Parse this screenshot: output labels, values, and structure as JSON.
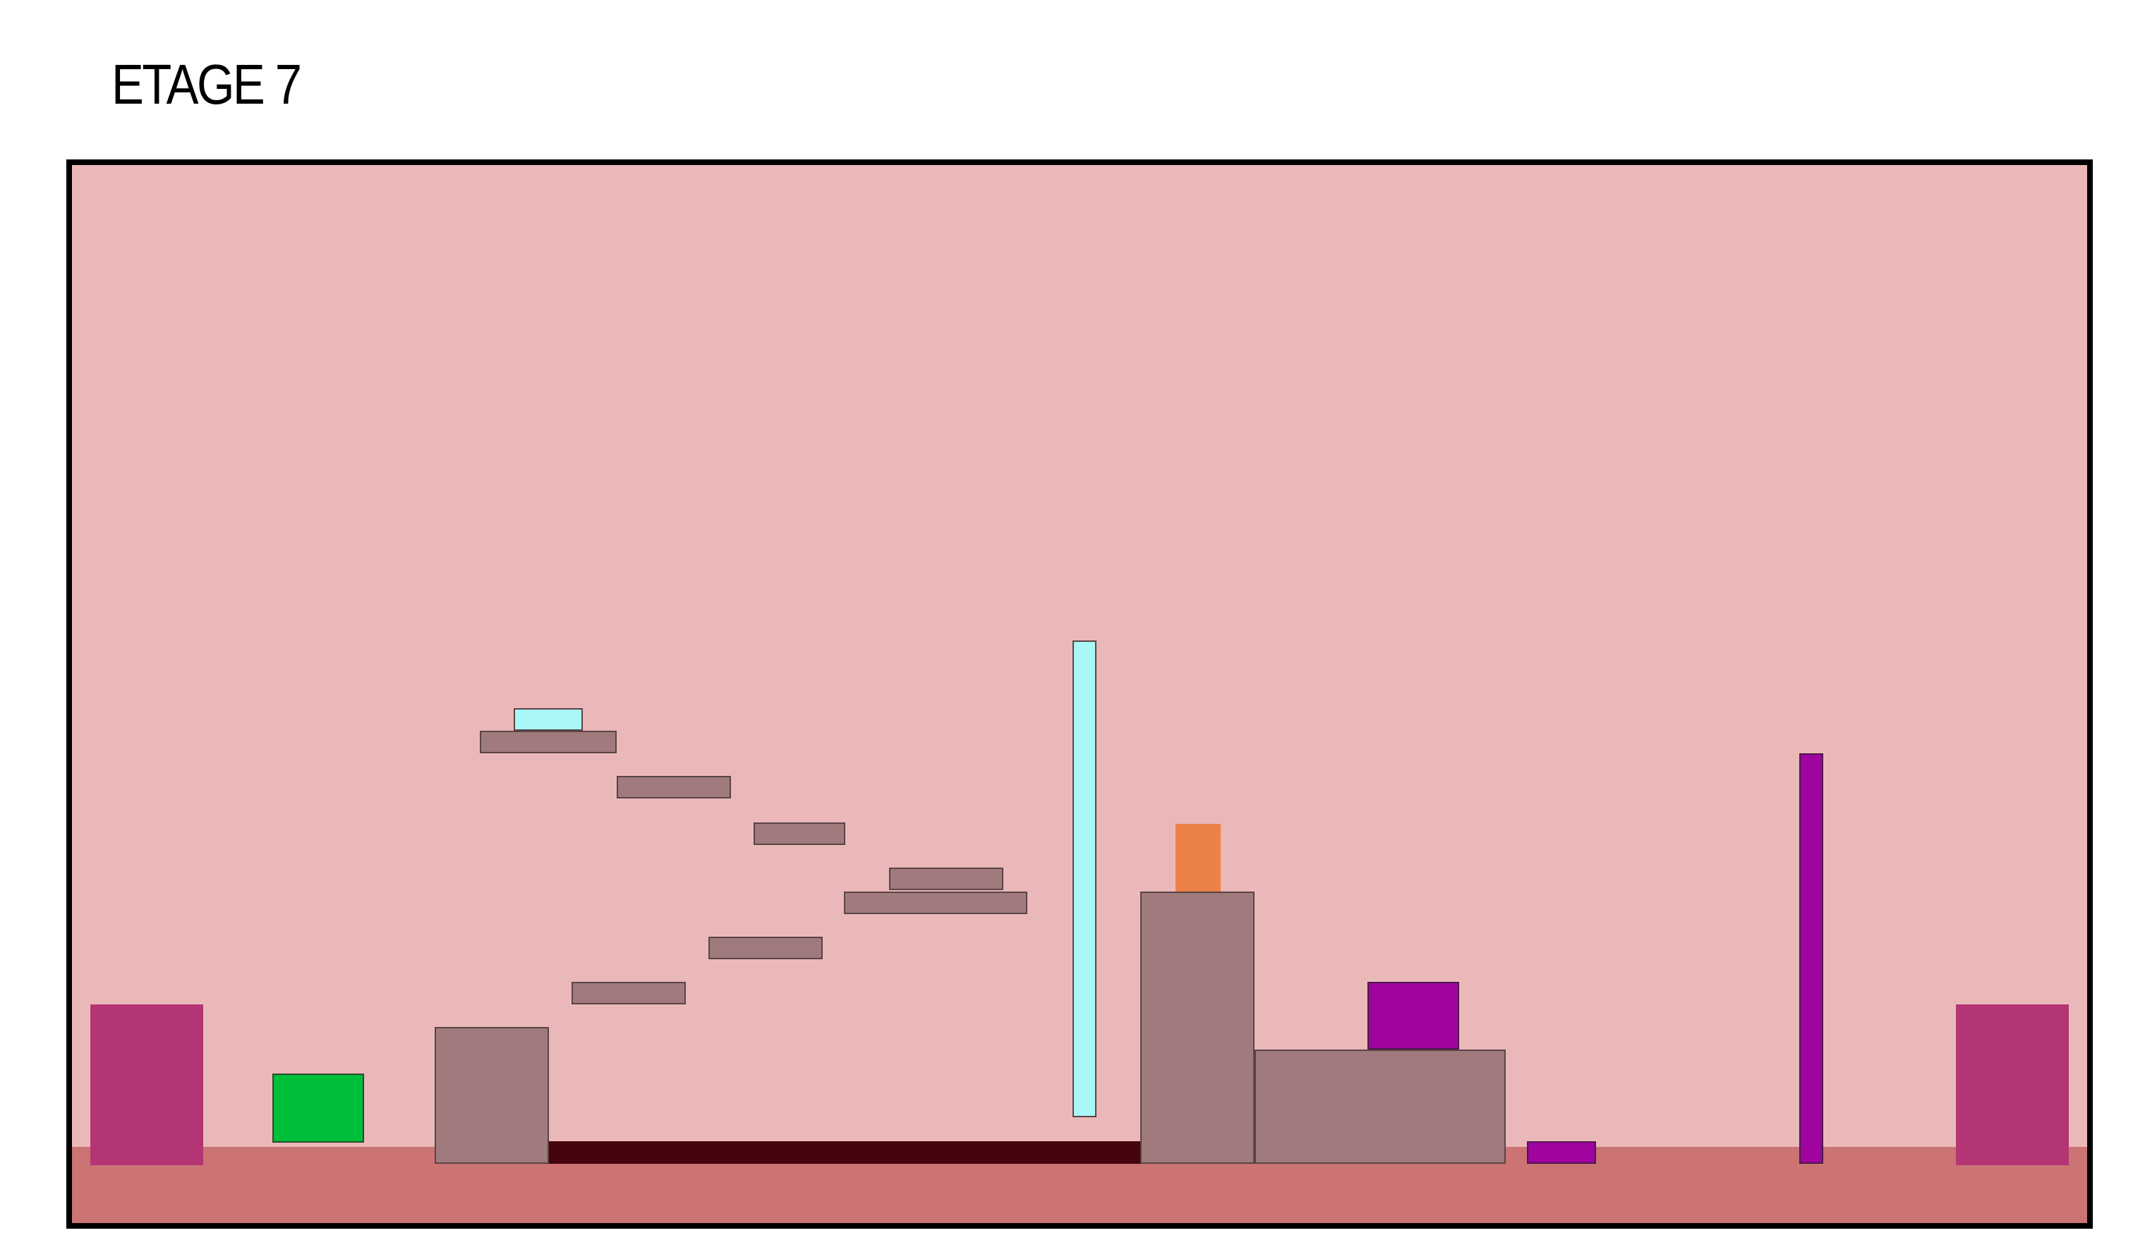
{
  "level": {
    "title": "ETAGE 7"
  },
  "palette": {
    "background": "#ebb8b9",
    "ground": "#cb7473",
    "wall": "#a07a7c",
    "door": "#b43574",
    "player": "#00bf3a",
    "ice": "#a9f7f7",
    "crate": "#ec8147",
    "purple_block": "#9f049f",
    "lava": "#45040b",
    "border": "#000000"
  }
}
